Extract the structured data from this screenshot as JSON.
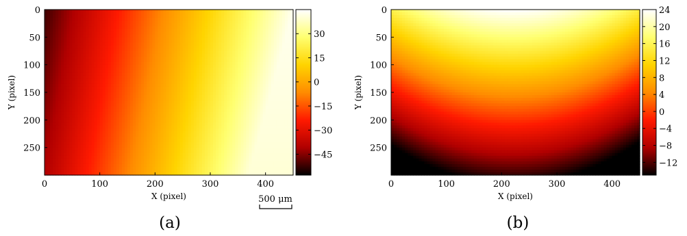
{
  "colors": {
    "colormap": "hot",
    "colormap_stops": [
      "#000000",
      "#b00000",
      "#ff1a00",
      "#ff8c00",
      "#ffd400",
      "#ffff70",
      "#ffffff"
    ]
  },
  "chart_data": [
    {
      "type": "heatmap",
      "panel_label": "(a)",
      "xlabel": "X (pixel)",
      "ylabel": "Y (pixel)",
      "xlim": [
        0,
        450
      ],
      "ylim": [
        0,
        300
      ],
      "y_inverted": true,
      "x_ticks": [
        0,
        100,
        200,
        300,
        400
      ],
      "y_ticks": [
        0,
        50,
        100,
        150,
        200,
        250
      ],
      "colorbar": {
        "vmin": -58,
        "vmax": 45,
        "ticks": [
          -45,
          -30,
          -15,
          0,
          15,
          30
        ],
        "tick_labels": [
          "−45",
          "−30",
          "−15",
          "0",
          "15",
          "30"
        ]
      },
      "field": {
        "description_type": "linear",
        "corner_values": {
          "top_left": -52,
          "top_right": 43,
          "bottom_left": -58,
          "bottom_right": 40
        },
        "tilt": 0.18
      },
      "scale_bar": {
        "label": "500 μm"
      },
      "grid": false
    },
    {
      "type": "heatmap",
      "panel_label": "(b)",
      "xlabel": "X (pixel)",
      "ylabel": "Y (pixel)",
      "xlim": [
        0,
        450
      ],
      "ylim": [
        0,
        300
      ],
      "y_inverted": true,
      "x_ticks": [
        0,
        100,
        200,
        300,
        400
      ],
      "y_ticks": [
        0,
        50,
        100,
        150,
        200,
        250
      ],
      "colorbar": {
        "vmin": -15,
        "vmax": 24,
        "ticks": [
          -12,
          -8,
          -4,
          0,
          4,
          8,
          12,
          16,
          20,
          24
        ],
        "tick_labels": [
          "−12",
          "−8",
          "−4",
          "0",
          "4",
          "8",
          "12",
          "16",
          "20",
          "24"
        ]
      },
      "field": {
        "description_type": "quadratic",
        "peak_x": 220,
        "peak_y": 0,
        "peak_value": 24,
        "bottom_value": -15,
        "x_falloff": 9
      },
      "grid": false
    }
  ]
}
